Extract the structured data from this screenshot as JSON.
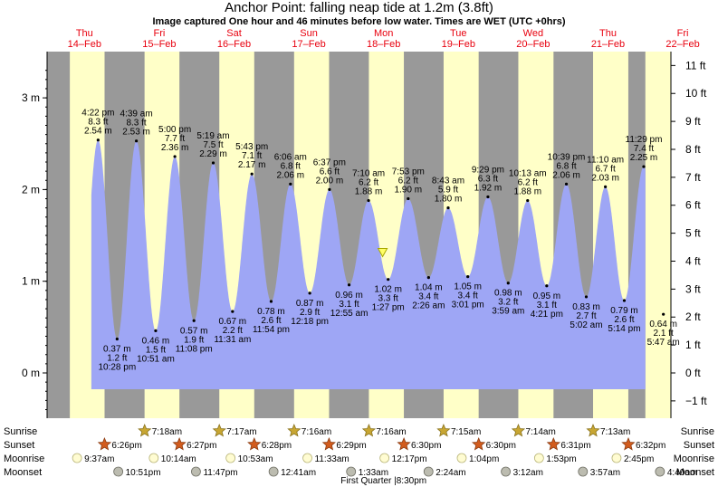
{
  "chart_data": {
    "type": "area",
    "title": "Anchor Point: falling  neap tide at 1.2m (3.8ft)",
    "subtitle": "Image captured One hour and 46 minutes before low water. Times are WET (UTC +0hrs)",
    "y_left_ticks": [
      "0 m",
      "1 m",
      "2 m",
      "3 m"
    ],
    "y_right_ticks": [
      "−1 ft",
      "0 ft",
      "1 ft",
      "2 ft",
      "3 ft",
      "4 ft",
      "5 ft",
      "6 ft",
      "7 ft",
      "8 ft",
      "9 ft",
      "10 ft",
      "11 ft"
    ],
    "ylim_m": [
      -0.45,
      3.45
    ],
    "days": [
      {
        "dow": "Thu",
        "date": "14–Feb"
      },
      {
        "dow": "Fri",
        "date": "15–Feb"
      },
      {
        "dow": "Sat",
        "date": "16–Feb"
      },
      {
        "dow": "Sun",
        "date": "17–Feb"
      },
      {
        "dow": "Mon",
        "date": "18–Feb"
      },
      {
        "dow": "Tue",
        "date": "19–Feb"
      },
      {
        "dow": "Wed",
        "date": "20–Feb"
      },
      {
        "dow": "Thu",
        "date": "21–Feb"
      },
      {
        "dow": "Fri",
        "date": "22–Feb"
      }
    ],
    "night_bands": [
      [
        0,
        7.3
      ],
      [
        18.45,
        31.28
      ],
      [
        42.47,
        55.27
      ],
      [
        66.48,
        79.27
      ],
      [
        90.5,
        103.27
      ],
      [
        114.5,
        127.25
      ],
      [
        138.5,
        151.23
      ],
      [
        162.52,
        175.22
      ],
      [
        186.53,
        192
      ]
    ],
    "extremes": [
      {
        "type": "high",
        "t": 16.37,
        "m": 2.54,
        "time": "4:22 pm",
        "ft": "8.3 ft",
        "mt": "2.54 m"
      },
      {
        "type": "low",
        "t": 22.47,
        "m": 0.37,
        "time": "10:28 pm",
        "ft": "1.2 ft",
        "mt": "0.37 m"
      },
      {
        "type": "high",
        "t": 28.65,
        "m": 2.53,
        "time": "4:39 am",
        "ft": "8.3 ft",
        "mt": "2.53 m"
      },
      {
        "type": "low",
        "t": 34.85,
        "m": 0.46,
        "time": "10:51 am",
        "ft": "1.5 ft",
        "mt": "0.46 m"
      },
      {
        "type": "high",
        "t": 41.0,
        "m": 2.36,
        "time": "5:00 pm",
        "ft": "7.7 ft",
        "mt": "2.36 m"
      },
      {
        "type": "low",
        "t": 47.13,
        "m": 0.57,
        "time": "11:08 pm",
        "ft": "1.9 ft",
        "mt": "0.57 m"
      },
      {
        "type": "high",
        "t": 53.32,
        "m": 2.29,
        "time": "5:19 am",
        "ft": "7.5 ft",
        "mt": "2.29 m"
      },
      {
        "type": "low",
        "t": 59.52,
        "m": 0.67,
        "time": "11:31 am",
        "ft": "2.2 ft",
        "mt": "0.67 m"
      },
      {
        "type": "high",
        "t": 65.72,
        "m": 2.17,
        "time": "5:43 pm",
        "ft": "7.1 ft",
        "mt": "2.17 m"
      },
      {
        "type": "low",
        "t": 71.9,
        "m": 0.78,
        "time": "11:54 pm",
        "ft": "2.6 ft",
        "mt": "0.78 m"
      },
      {
        "type": "high",
        "t": 78.1,
        "m": 2.06,
        "time": "6:06 am",
        "ft": "6.8 ft",
        "mt": "2.06 m"
      },
      {
        "type": "low",
        "t": 84.3,
        "m": 0.87,
        "time": "12:18 pm",
        "ft": "2.9 ft",
        "mt": "0.87 m"
      },
      {
        "type": "high",
        "t": 90.62,
        "m": 2.0,
        "time": "6:37 pm",
        "ft": "6.6 ft",
        "mt": "2.00 m"
      },
      {
        "type": "low",
        "t": 96.92,
        "m": 0.96,
        "time": "12:55 am",
        "ft": "3.1 ft",
        "mt": "0.96 m"
      },
      {
        "type": "high",
        "t": 103.17,
        "m": 1.88,
        "time": "7:10 am",
        "ft": "6.2 ft",
        "mt": "1.88 m"
      },
      {
        "type": "low",
        "t": 109.45,
        "m": 1.02,
        "time": "1:27 pm",
        "ft": "3.3 ft",
        "mt": "1.02 m"
      },
      {
        "type": "high",
        "t": 115.88,
        "m": 1.9,
        "time": "7:53 pm",
        "ft": "6.2 ft",
        "mt": "1.90 m"
      },
      {
        "type": "low",
        "t": 122.43,
        "m": 1.04,
        "time": "2:26 am",
        "ft": "3.4 ft",
        "mt": "1.04 m"
      },
      {
        "type": "high",
        "t": 128.72,
        "m": 1.8,
        "time": "8:43 am",
        "ft": "5.9 ft",
        "mt": "1.80 m"
      },
      {
        "type": "low",
        "t": 135.02,
        "m": 1.05,
        "time": "3:01 pm",
        "ft": "3.4 ft",
        "mt": "1.05 m"
      },
      {
        "type": "high",
        "t": 141.48,
        "m": 1.92,
        "time": "9:29 pm",
        "ft": "6.3 ft",
        "mt": "1.92 m"
      },
      {
        "type": "low",
        "t": 147.98,
        "m": 0.98,
        "time": "3:59 am",
        "ft": "3.2 ft",
        "mt": "0.98 m"
      },
      {
        "type": "high",
        "t": 154.22,
        "m": 1.88,
        "time": "10:13 am",
        "ft": "6.2 ft",
        "mt": "1.88 m"
      },
      {
        "type": "low",
        "t": 160.35,
        "m": 0.95,
        "time": "4:21 pm",
        "ft": "3.1 ft",
        "mt": "0.95 m"
      },
      {
        "type": "high",
        "t": 166.65,
        "m": 2.06,
        "time": "10:39 pm",
        "ft": "6.8 ft",
        "mt": "2.06 m"
      },
      {
        "type": "low",
        "t": 173.03,
        "m": 0.83,
        "time": "5:02 am",
        "ft": "2.7 ft",
        "mt": "0.83 m"
      },
      {
        "type": "high",
        "t": 179.17,
        "m": 2.03,
        "time": "11:10 am",
        "ft": "6.7 ft",
        "mt": "2.03 m"
      },
      {
        "type": "low",
        "t": 185.23,
        "m": 0.79,
        "time": "5:14 pm",
        "ft": "2.6 ft",
        "mt": "0.79 m"
      },
      {
        "type": "high",
        "t": 191.48,
        "m": 2.25,
        "time": "11:29 pm",
        "ft": "7.4 ft",
        "mt": "2.25 m"
      },
      {
        "type": "low",
        "t": 197.78,
        "m": 0.64,
        "time": "5:47 am",
        "ft": "2.1 ft",
        "mt": "0.64 m"
      }
    ],
    "current": {
      "t": 107.68,
      "m": 1.2
    },
    "rows": {
      "sunrise": {
        "label": "Sunrise",
        "items": [
          {
            "t": 31.3,
            "time": "7:18am"
          },
          {
            "t": 55.28,
            "time": "7:17am"
          },
          {
            "t": 79.27,
            "time": "7:16am"
          },
          {
            "t": 103.27,
            "time": "7:16am"
          },
          {
            "t": 127.25,
            "time": "7:15am"
          },
          {
            "t": 151.23,
            "time": "7:14am"
          },
          {
            "t": 175.22,
            "time": "7:13am"
          }
        ]
      },
      "sunset": {
        "label": "Sunset",
        "items": [
          {
            "t": 18.43,
            "time": "6:26pm"
          },
          {
            "t": 42.45,
            "time": "6:27pm"
          },
          {
            "t": 66.47,
            "time": "6:28pm"
          },
          {
            "t": 90.48,
            "time": "6:29pm"
          },
          {
            "t": 114.5,
            "time": "6:30pm"
          },
          {
            "t": 138.5,
            "time": "6:30pm"
          },
          {
            "t": 162.52,
            "time": "6:31pm"
          },
          {
            "t": 186.53,
            "time": "6:32pm"
          }
        ]
      },
      "moonrise": {
        "label": "Moonrise",
        "items": [
          {
            "t": 9.62,
            "time": "9:37am"
          },
          {
            "t": 34.23,
            "time": "10:14am"
          },
          {
            "t": 58.88,
            "time": "10:53am"
          },
          {
            "t": 83.55,
            "time": "11:33am"
          },
          {
            "t": 108.28,
            "time": "12:17pm"
          },
          {
            "t": 133.07,
            "time": "1:04pm"
          },
          {
            "t": 157.88,
            "time": "1:53pm"
          },
          {
            "t": 182.75,
            "time": "2:45pm"
          }
        ]
      },
      "moonset": {
        "label": "Moonset",
        "items": [
          {
            "t": 22.85,
            "time": "10:51pm"
          },
          {
            "t": 47.78,
            "time": "11:47pm"
          },
          {
            "t": 72.68,
            "time": "12:41am"
          },
          {
            "t": 97.55,
            "time": "1:33am"
          },
          {
            "t": 122.4,
            "time": "2:24am"
          },
          {
            "t": 147.2,
            "time": "3:12am"
          },
          {
            "t": 171.95,
            "time": "3:57am"
          },
          {
            "t": 196.67,
            "time": "4:40am"
          }
        ]
      }
    },
    "moon_phase": {
      "t": 108.0,
      "label": "First Quarter |8:30pm"
    },
    "colors": {
      "day": "#ffffc8",
      "night": "#999999",
      "water": "#9ea6f5",
      "day_header": "#e8000e",
      "sun_icon": "#c8a632",
      "sunset_icon": "#d25c1e",
      "moon_icon": "#fffcd2",
      "moonset_icon": "#bcbcb0"
    }
  }
}
